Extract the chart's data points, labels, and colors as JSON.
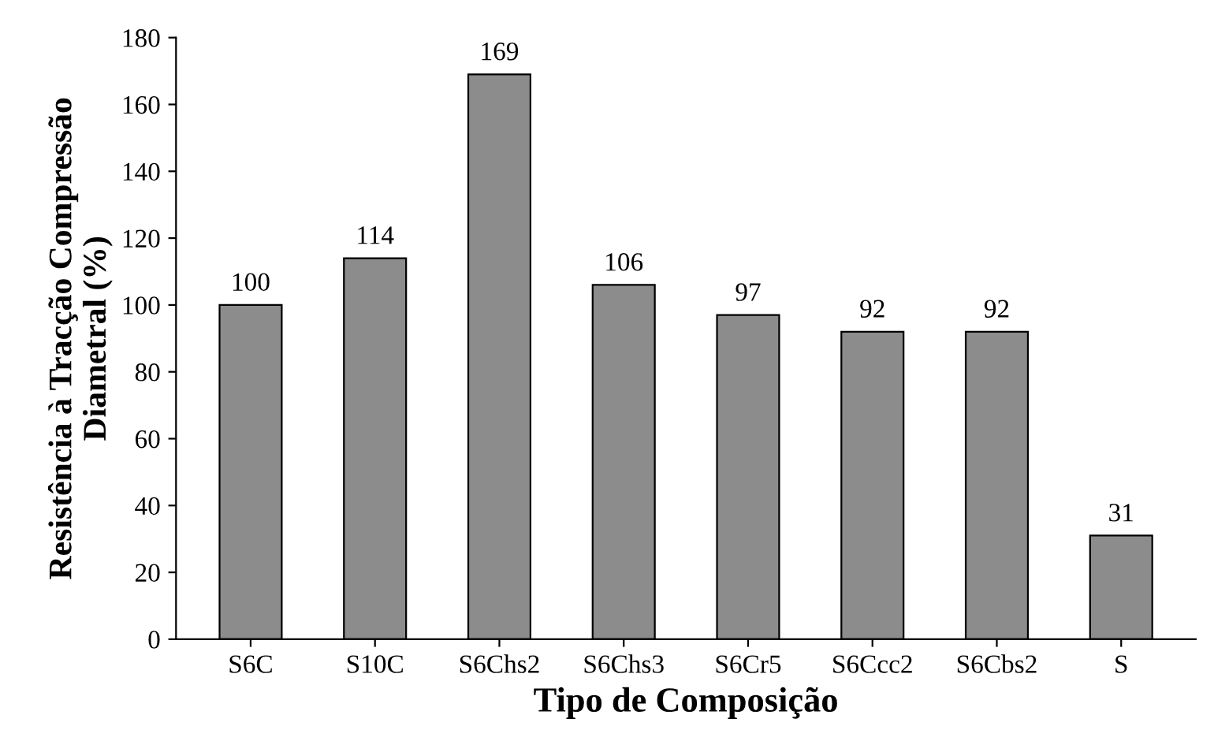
{
  "chart_data": {
    "type": "bar",
    "xlabel": "Tipo de Composição",
    "ylabel": "Resistência à Tracção Compressão\nDiametral (%)",
    "categories": [
      "S6C",
      "S10C",
      "S6Chs2",
      "S6Chs3",
      "S6Cr5",
      "S6Ccc2",
      "S6Cbs2",
      "S"
    ],
    "values": [
      100,
      114,
      169,
      106,
      97,
      92,
      92,
      31
    ],
    "color": "#8c8c8c",
    "ylim": [
      0,
      180
    ],
    "yticks": [
      0,
      20,
      40,
      60,
      80,
      100,
      120,
      140,
      160,
      180
    ],
    "grid": false,
    "data_labels": true
  }
}
